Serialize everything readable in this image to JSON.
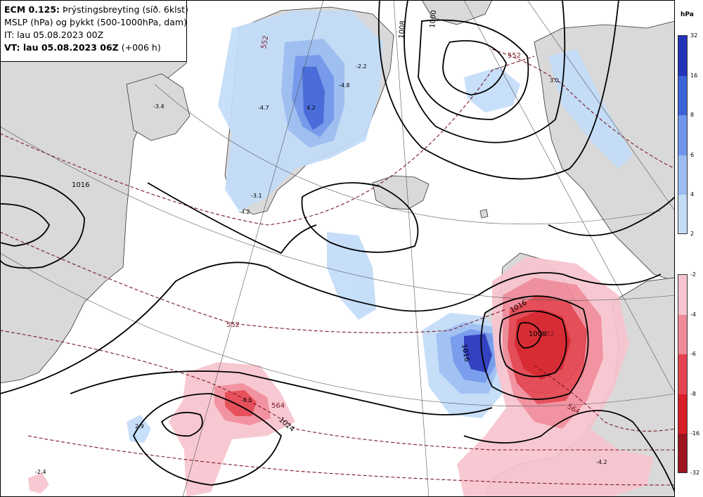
{
  "header": {
    "model": "ECM 0.125:",
    "variable": "Þrýstingsbreyting (síð. 6klst)",
    "line2": "MSLP (hPa) og þykkt (500-1000hPa, dam)",
    "init_time": "IT: lau 05.08.2023 00Z",
    "valid_prefix": "VT: lau 05.08.2023 06Z",
    "valid_suffix": "(+006 h)"
  },
  "legend": {
    "unit": "hPa",
    "rise_scale": {
      "ticks": [
        "32",
        "16",
        "8",
        "6",
        "4",
        "2"
      ],
      "colors": [
        "#2233bb",
        "#3d63d9",
        "#6f96ec",
        "#9cbdf4",
        "#c2dcf8"
      ]
    },
    "fall_scale": {
      "ticks": [
        "-2",
        "-4",
        "-6",
        "-8",
        "-16",
        "-32"
      ],
      "colors": [
        "#f8c4cf",
        "#f08a98",
        "#e4434f",
        "#d81e28",
        "#9b1520"
      ]
    }
  },
  "map": {
    "colors": {
      "land": "#d9d9d9",
      "sea": "#ffffff",
      "isobar": "#000000",
      "thickness": "#7a1a24"
    },
    "isobar_labels": [
      "1016",
      "1008",
      "1000",
      "1016",
      "1016",
      "1024",
      "1008"
    ],
    "thickness_labels": [
      "552",
      "552",
      "564",
      "552",
      "564",
      "552"
    ],
    "value_labels": [
      "-2.2",
      "-4.8",
      "-3.4",
      "-4.7",
      "-3.1",
      "-4.2",
      "3.0",
      "-9.5",
      "2.9",
      "-2.4",
      "-4.2",
      "4.2"
    ]
  }
}
